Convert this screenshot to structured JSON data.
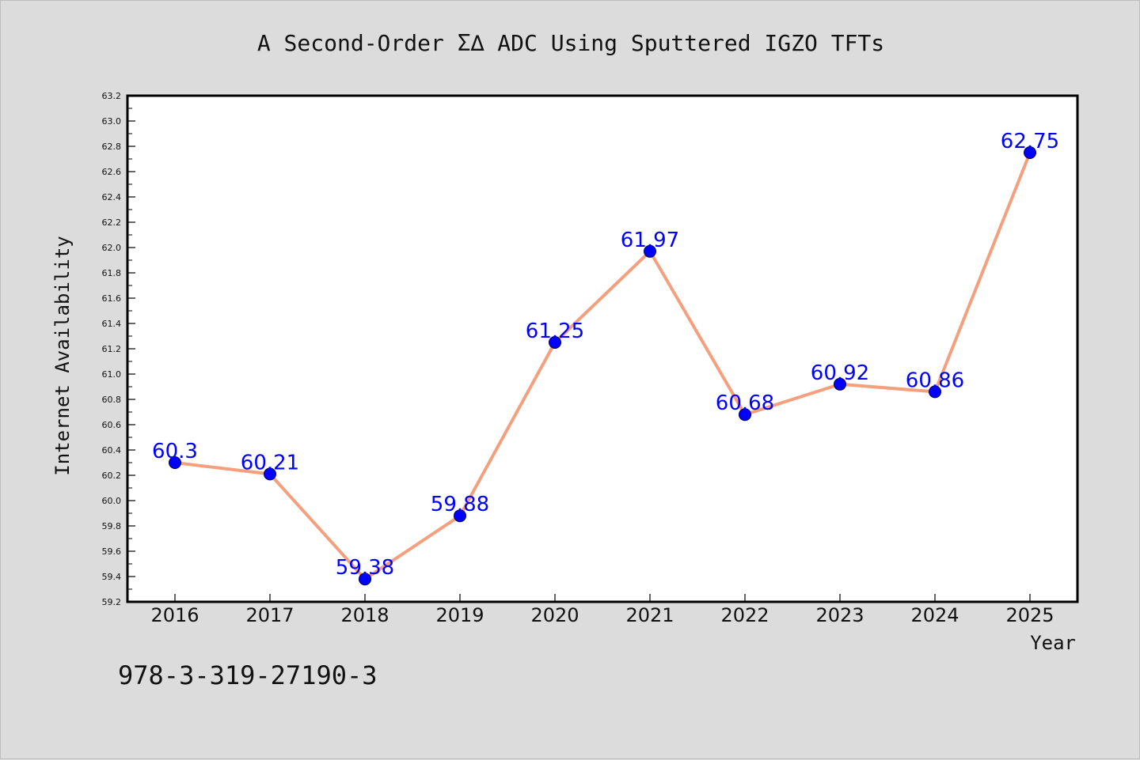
{
  "chart_data": {
    "type": "line",
    "title": "A Second-Order Σ∆ ADC Using Sputtered IGZO TFTs",
    "xlabel": "Year",
    "ylabel": "Internet Availability",
    "categories": [
      "2016",
      "2017",
      "2018",
      "2019",
      "2020",
      "2021",
      "2022",
      "2023",
      "2024",
      "2025"
    ],
    "values": [
      60.3,
      60.21,
      59.38,
      59.88,
      61.25,
      61.97,
      60.68,
      60.92,
      60.86,
      62.75
    ],
    "data_labels": [
      "60.3",
      "60.21",
      "59.38",
      "59.88",
      "61.25",
      "61.97",
      "60.68",
      "60.92",
      "60.86",
      "62.75"
    ],
    "ylim": [
      59.2,
      63.2
    ],
    "yticks": [
      "59.2",
      "59.4",
      "59.6",
      "59.8",
      "60.0",
      "60.2",
      "60.4",
      "60.6",
      "60.8",
      "61.0",
      "61.2",
      "61.4",
      "61.6",
      "61.8",
      "62.0",
      "62.2",
      "62.4",
      "62.6",
      "62.8",
      "63.0",
      "63.2"
    ],
    "grid": false,
    "legend": "none",
    "colors": {
      "line": "#f4a07e",
      "marker": "#0000ff",
      "data_label": "#0000ff",
      "background": "#dcdcdc",
      "plot_area": "#ffffff"
    }
  },
  "footer_note": "978-3-319-27190-3"
}
